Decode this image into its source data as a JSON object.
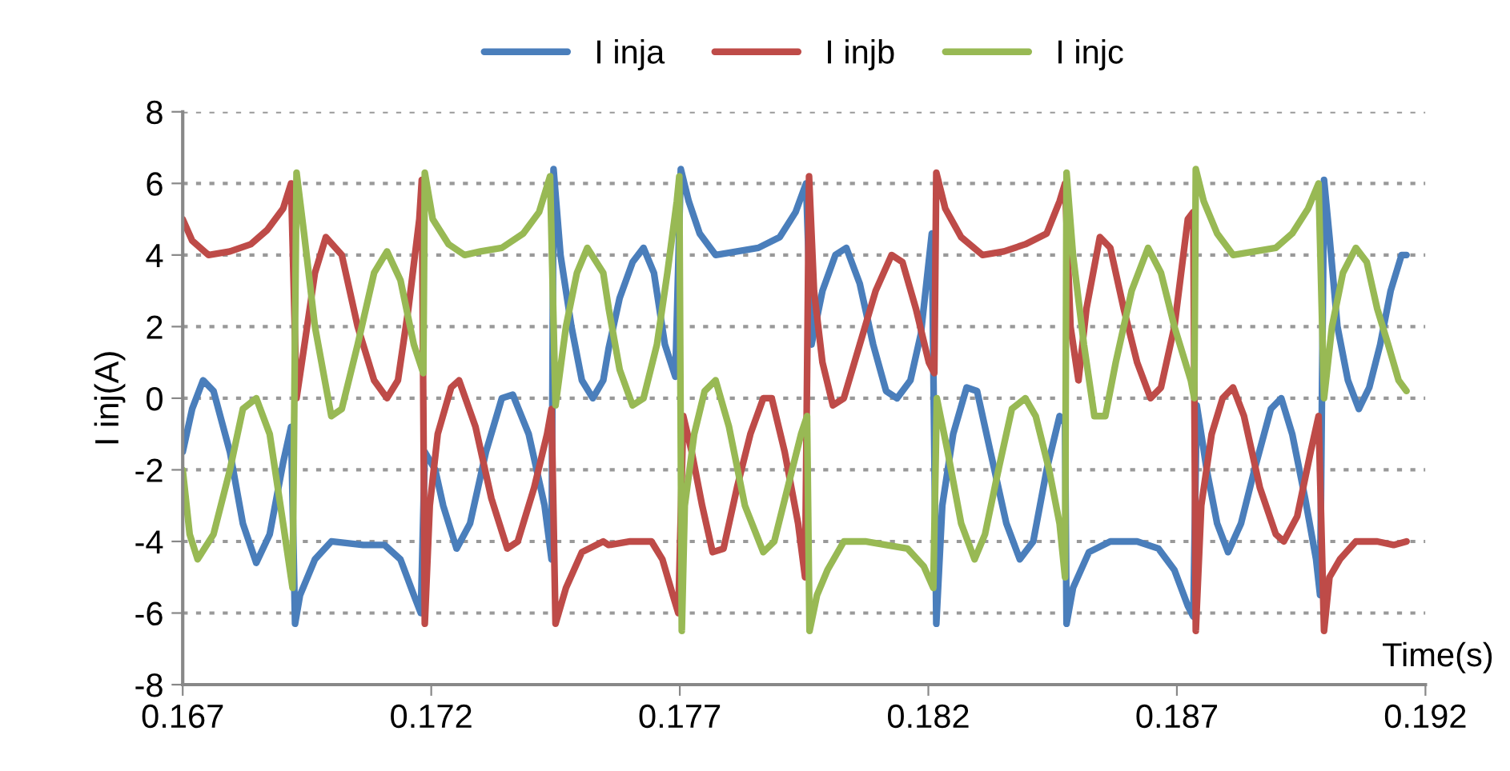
{
  "chart_data": {
    "type": "line",
    "xlabel": "Time(s)",
    "ylabel": "I inj(A)",
    "xlim": [
      0.167,
      0.192
    ],
    "xticks": [
      0.167,
      0.172,
      0.177,
      0.182,
      0.187,
      0.192
    ],
    "ylim": [
      -8,
      8
    ],
    "yticks": [
      -8,
      -6,
      -4,
      -2,
      0,
      2,
      4,
      6,
      8
    ],
    "grid": "y",
    "legend": "top",
    "marker": "none",
    "line_style": "solid",
    "series": [
      {
        "name": "I inja",
        "color": "#4a7ebb",
        "x": [
          0.167,
          0.16719,
          0.16741,
          0.16762,
          0.16795,
          0.16821,
          0.16848,
          0.16875,
          0.16902,
          0.16918,
          0.16926,
          0.16936,
          0.16966,
          0.16999,
          0.17063,
          0.17106,
          0.17138,
          0.17165,
          0.17179,
          0.17187,
          0.17208,
          0.17224,
          0.17251,
          0.17278,
          0.1731,
          0.17342,
          0.17364,
          0.17396,
          0.17428,
          0.17442,
          0.17446,
          0.1746,
          0.17482,
          0.17503,
          0.17525,
          0.17546,
          0.17557,
          0.17579,
          0.17605,
          0.17627,
          0.17648,
          0.1767,
          0.17691,
          0.17702,
          0.17718,
          0.1774,
          0.17772,
          0.17815,
          0.17858,
          0.17901,
          0.17933,
          0.17954,
          0.17965,
          0.17987,
          0.18013,
          0.18035,
          0.18062,
          0.18089,
          0.18115,
          0.18137,
          0.18164,
          0.18185,
          0.18207,
          0.18216,
          0.18228,
          0.1825,
          0.18277,
          0.18298,
          0.18325,
          0.18357,
          0.18384,
          0.18411,
          0.18438,
          0.18464,
          0.18475,
          0.18478,
          0.18491,
          0.18523,
          0.18566,
          0.1862,
          0.18663,
          0.18695,
          0.18722,
          0.18733,
          0.1874,
          0.1876,
          0.18781,
          0.18803,
          0.18829,
          0.18856,
          0.18889,
          0.1891,
          0.18932,
          0.18958,
          0.1898,
          0.18988,
          0.18996,
          0.19007,
          0.19023,
          0.19044,
          0.19066,
          0.19087,
          0.19109,
          0.1913,
          0.19152,
          0.19162
        ],
        "values": [
          -1.5,
          -0.3,
          0.5,
          0.2,
          -1.5,
          -3.5,
          -4.6,
          -3.8,
          -1.8,
          -0.8,
          -6.3,
          -5.5,
          -4.5,
          -4,
          -4.1,
          -4.1,
          -4.5,
          -5.5,
          -6,
          -1.5,
          -2,
          -3,
          -4.2,
          -3.5,
          -1.5,
          0,
          0.1,
          -1,
          -3,
          -4.5,
          6.4,
          4,
          2,
          0.5,
          0,
          0.5,
          1.4,
          2.8,
          3.8,
          4.2,
          3.5,
          1.5,
          0.6,
          6.4,
          5.5,
          4.6,
          4,
          4.1,
          4.2,
          4.5,
          5.2,
          6,
          1.5,
          3,
          4,
          4.2,
          3.2,
          1.5,
          0.2,
          0,
          0.5,
          1.8,
          4.6,
          -6.3,
          -3,
          -1,
          0.3,
          0.2,
          -1.5,
          -3.5,
          -4.5,
          -4,
          -2,
          -0.5,
          -0.7,
          -6.3,
          -5.3,
          -4.3,
          -4,
          -4,
          -4.2,
          -4.8,
          -5.8,
          -6.1,
          -0.2,
          -2,
          -3.5,
          -4.3,
          -3.5,
          -2,
          -0.3,
          0,
          -1,
          -2.8,
          -4.5,
          -5.5,
          6.1,
          4.5,
          2,
          0.5,
          -0.3,
          0.3,
          1.5,
          3,
          4,
          4
        ]
      },
      {
        "name": "I injb",
        "color": "#be4b48",
        "x": [
          0.167,
          0.16719,
          0.16752,
          0.16795,
          0.16837,
          0.1687,
          0.16902,
          0.16918,
          0.16929,
          0.16945,
          0.16966,
          0.16988,
          0.1702,
          0.17052,
          0.17085,
          0.17111,
          0.17133,
          0.17154,
          0.17176,
          0.17181,
          0.17187,
          0.17197,
          0.17213,
          0.1724,
          0.17256,
          0.17289,
          0.17321,
          0.17353,
          0.17374,
          0.17407,
          0.17433,
          0.17442,
          0.1745,
          0.17471,
          0.17503,
          0.17546,
          0.17557,
          0.176,
          0.17643,
          0.17665,
          0.17686,
          0.17697,
          0.17707,
          0.17724,
          0.17745,
          0.17766,
          0.17788,
          0.17815,
          0.17842,
          0.17868,
          0.17885,
          0.17911,
          0.17938,
          0.17952,
          0.1796,
          0.1797,
          0.17987,
          0.18008,
          0.1803,
          0.18062,
          0.18094,
          0.18126,
          0.18148,
          0.18175,
          0.18201,
          0.18212,
          0.18216,
          0.18234,
          0.18266,
          0.18309,
          0.18352,
          0.18395,
          0.18438,
          0.18464,
          0.18475,
          0.18486,
          0.18502,
          0.18518,
          0.18545,
          0.18566,
          0.18593,
          0.1862,
          0.18647,
          0.18668,
          0.18695,
          0.18722,
          0.18733,
          0.18738,
          0.18749,
          0.1877,
          0.18792,
          0.18813,
          0.18835,
          0.18867,
          0.18899,
          0.18915,
          0.18942,
          0.18969,
          0.18985,
          0.18996,
          0.19007,
          0.19028,
          0.1906,
          0.19103,
          0.19136,
          0.19162
        ],
        "values": [
          5,
          4.4,
          4,
          4.1,
          4.3,
          4.7,
          5.3,
          6,
          0,
          1.5,
          3.5,
          4.5,
          4,
          2,
          0.5,
          0,
          0.5,
          2.5,
          5,
          6.1,
          -6.3,
          -3,
          -1,
          0.3,
          0.5,
          -0.8,
          -2.8,
          -4.2,
          -4,
          -2.5,
          -1,
          -0.3,
          -6.3,
          -5.3,
          -4.3,
          -4,
          -4.1,
          -4,
          -4,
          -4.5,
          -5.5,
          -6,
          -0.5,
          -1.5,
          -3,
          -4.3,
          -4.2,
          -2.5,
          -1,
          0,
          0,
          -1.5,
          -3.5,
          -5,
          6.2,
          3,
          1,
          -0.2,
          0,
          1.5,
          3,
          4,
          3.8,
          2.5,
          1,
          0.7,
          6.3,
          5.3,
          4.5,
          4,
          4.1,
          4.3,
          4.6,
          5.5,
          6,
          2,
          0.5,
          2.5,
          4.5,
          4.2,
          2.5,
          1,
          0,
          0.3,
          2,
          5,
          5.2,
          -6.5,
          -3,
          -1,
          0,
          0.3,
          -0.5,
          -2.5,
          -3.8,
          -4,
          -3.3,
          -1.5,
          -0.5,
          -6.5,
          -5,
          -4.5,
          -4,
          -4,
          -4.1,
          -4
        ]
      },
      {
        "name": "I injc",
        "color": "#98b954",
        "x": [
          0.167,
          0.16714,
          0.1673,
          0.16762,
          0.16795,
          0.16821,
          0.16848,
          0.16875,
          0.16902,
          0.16921,
          0.16929,
          0.16945,
          0.16966,
          0.16999,
          0.1702,
          0.17052,
          0.17085,
          0.17111,
          0.17138,
          0.17165,
          0.17184,
          0.17187,
          0.17203,
          0.17235,
          0.17267,
          0.17299,
          0.17342,
          0.17385,
          0.17417,
          0.17439,
          0.1745,
          0.17471,
          0.17493,
          0.17514,
          0.17546,
          0.17557,
          0.17579,
          0.17605,
          0.17627,
          0.17654,
          0.17675,
          0.17694,
          0.17699,
          0.17704,
          0.1771,
          0.17729,
          0.1775,
          0.17772,
          0.17799,
          0.17831,
          0.17868,
          0.1789,
          0.17917,
          0.17944,
          0.17956,
          0.17961,
          0.17976,
          0.17997,
          0.1803,
          0.18073,
          0.18115,
          0.18158,
          0.18191,
          0.1821,
          0.18217,
          0.18239,
          0.18266,
          0.18293,
          0.18314,
          0.18341,
          0.18368,
          0.18395,
          0.18416,
          0.18443,
          0.18464,
          0.18475,
          0.18478,
          0.18491,
          0.18513,
          0.18534,
          0.18556,
          0.18577,
          0.18609,
          0.18642,
          0.18668,
          0.18695,
          0.18728,
          0.18735,
          0.18738,
          0.18754,
          0.18781,
          0.18813,
          0.18856,
          0.18899,
          0.18932,
          0.18964,
          0.18985,
          0.18996,
          0.19012,
          0.19034,
          0.1906,
          0.19082,
          0.19103,
          0.19125,
          0.19146,
          0.19162
        ],
        "values": [
          -2,
          -3.8,
          -4.5,
          -3.8,
          -2,
          -0.3,
          0,
          -1,
          -3.5,
          -5.3,
          6.3,
          4.5,
          2,
          -0.5,
          -0.3,
          1.5,
          3.5,
          4.1,
          3.3,
          1.5,
          0.7,
          6.3,
          5,
          4.3,
          4,
          4.1,
          4.2,
          4.6,
          5.2,
          6.2,
          -0.2,
          2,
          3.5,
          4.2,
          3.5,
          2.5,
          0.8,
          -0.2,
          0,
          1.5,
          3.5,
          5.5,
          6.2,
          -6.5,
          -3,
          -1,
          0.2,
          0.5,
          -0.8,
          -3,
          -4.3,
          -4,
          -2.5,
          -1,
          -0.5,
          -6.5,
          -5.5,
          -4.8,
          -4,
          -4,
          -4.1,
          -4.2,
          -4.7,
          -5.3,
          0,
          -1.5,
          -3.5,
          -4.5,
          -3.8,
          -2,
          -0.3,
          0,
          -0.5,
          -2,
          -3.5,
          -5,
          6.3,
          4,
          1.5,
          -0.5,
          -0.5,
          1,
          3,
          4.2,
          3.5,
          2,
          0.5,
          0,
          6.4,
          5.5,
          4.6,
          4,
          4.1,
          4.2,
          4.6,
          5.3,
          6,
          0,
          2,
          3.5,
          4.2,
          3.8,
          2.5,
          1.5,
          0.5,
          0.2
        ]
      }
    ]
  }
}
